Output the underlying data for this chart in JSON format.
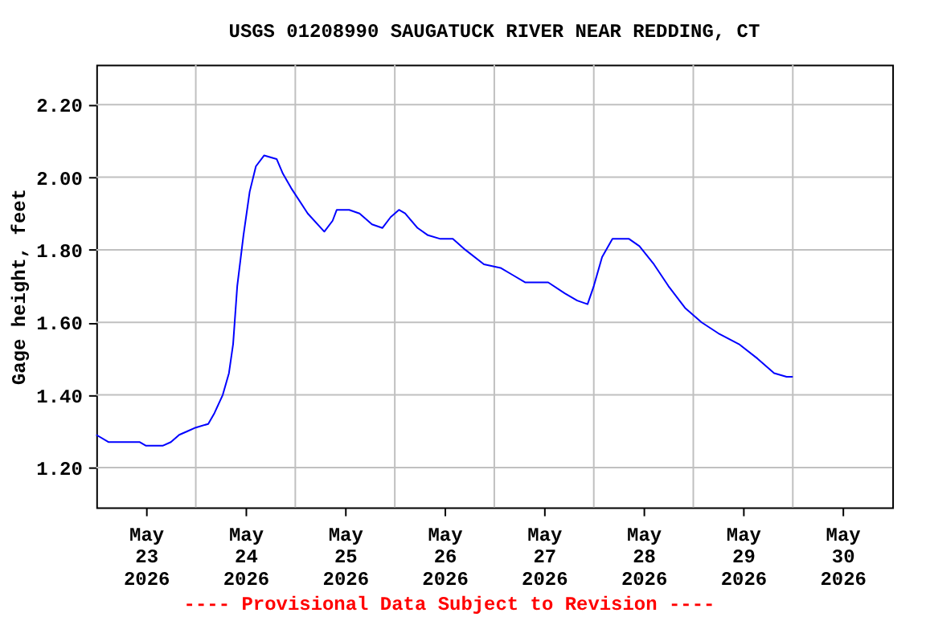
{
  "chart_data": {
    "type": "line",
    "title": "USGS 01208990 SAUGATUCK RIVER NEAR REDDING, CT",
    "ylabel": "Gage height, feet",
    "annotations": [
      "---- Provisional Data Subject to Revision ----"
    ],
    "x": [
      "2026-05-23T00:00",
      "2026-05-23T03:00",
      "2026-05-23T10:30",
      "2026-05-23T12:00",
      "2026-05-23T16:00",
      "2026-05-23T18:00",
      "2026-05-23T20:00",
      "2026-05-23T22:00",
      "2026-05-24T00:00",
      "2026-05-24T03:00",
      "2026-05-24T04:30",
      "2026-05-24T06:30",
      "2026-05-24T08:00",
      "2026-05-24T09:00",
      "2026-05-24T10:00",
      "2026-05-24T11:30",
      "2026-05-24T13:00",
      "2026-05-24T14:30",
      "2026-05-24T16:30",
      "2026-05-24T19:30",
      "2026-05-24T21:00",
      "2026-05-24T23:00",
      "2026-05-25T03:00",
      "2026-05-25T07:00",
      "2026-05-25T09:00",
      "2026-05-25T10:00",
      "2026-05-25T13:00",
      "2026-05-25T15:30",
      "2026-05-25T18:30",
      "2026-05-25T21:00",
      "2026-05-25T23:00",
      "2026-05-26T01:00",
      "2026-05-26T02:30",
      "2026-05-26T05:30",
      "2026-05-26T08:00",
      "2026-05-26T11:00",
      "2026-05-26T14:00",
      "2026-05-26T17:00",
      "2026-05-26T21:30",
      "2026-05-27T01:30",
      "2026-05-27T04:30",
      "2026-05-27T07:30",
      "2026-05-27T13:00",
      "2026-05-27T17:00",
      "2026-05-27T20:00",
      "2026-05-27T22:30",
      "2026-05-28T00:00",
      "2026-05-28T02:00",
      "2026-05-28T04:30",
      "2026-05-28T08:30",
      "2026-05-28T11:00",
      "2026-05-28T14:30",
      "2026-05-28T18:00",
      "2026-05-28T22:00",
      "2026-05-29T02:00",
      "2026-05-29T06:00",
      "2026-05-29T11:00",
      "2026-05-29T15:30",
      "2026-05-29T19:30",
      "2026-05-29T22:30",
      "2026-05-30T00:00"
    ],
    "series": [
      {
        "color": "#0000ff",
        "values": [
          1.29,
          1.27,
          1.27,
          1.26,
          1.26,
          1.27,
          1.29,
          1.3,
          1.31,
          1.32,
          1.35,
          1.4,
          1.46,
          1.54,
          1.7,
          1.84,
          1.96,
          2.03,
          2.06,
          2.05,
          2.01,
          1.97,
          1.9,
          1.85,
          1.88,
          1.91,
          1.91,
          1.9,
          1.87,
          1.86,
          1.89,
          1.91,
          1.9,
          1.86,
          1.84,
          1.83,
          1.83,
          1.8,
          1.76,
          1.75,
          1.73,
          1.71,
          1.71,
          1.68,
          1.66,
          1.65,
          1.7,
          1.78,
          1.83,
          1.83,
          1.81,
          1.76,
          1.7,
          1.64,
          1.6,
          1.57,
          1.54,
          1.5,
          1.46,
          1.45,
          1.45
        ]
      }
    ],
    "xlim": [
      "2026-05-23T00:00",
      "2026-05-31T00:00"
    ],
    "xticks": [
      {
        "value": "2026-05-23T12:00",
        "label": "May\n23\n2026"
      },
      {
        "value": "2026-05-24T00:00",
        "label": null
      },
      {
        "value": "2026-05-24T12:00",
        "label": "May\n24\n2026"
      },
      {
        "value": "2026-05-25T00:00",
        "label": null
      },
      {
        "value": "2026-05-25T12:00",
        "label": "May\n25\n2026"
      },
      {
        "value": "2026-05-26T00:00",
        "label": null
      },
      {
        "value": "2026-05-26T12:00",
        "label": "May\n26\n2026"
      },
      {
        "value": "2026-05-27T00:00",
        "label": null
      },
      {
        "value": "2026-05-27T12:00",
        "label": "May\n27\n2026"
      },
      {
        "value": "2026-05-28T00:00",
        "label": null
      },
      {
        "value": "2026-05-28T12:00",
        "label": "May\n28\n2026"
      },
      {
        "value": "2026-05-29T00:00",
        "label": null
      },
      {
        "value": "2026-05-29T12:00",
        "label": "May\n29\n2026"
      },
      {
        "value": "2026-05-30T00:00",
        "label": null
      },
      {
        "value": "2026-05-30T12:00",
        "label": "May\n30\n2026"
      }
    ],
    "ylim": [
      1.09,
      2.31
    ],
    "yticks": [
      {
        "value": 1.2,
        "label": "1.20"
      },
      {
        "value": 1.4,
        "label": "1.40"
      },
      {
        "value": 1.6,
        "label": "1.60"
      },
      {
        "value": 1.8,
        "label": "1.80"
      },
      {
        "value": 2.0,
        "label": "2.00"
      },
      {
        "value": 2.2,
        "label": "2.20"
      }
    ],
    "grid": true,
    "marker": "none",
    "line_style": "solid"
  }
}
